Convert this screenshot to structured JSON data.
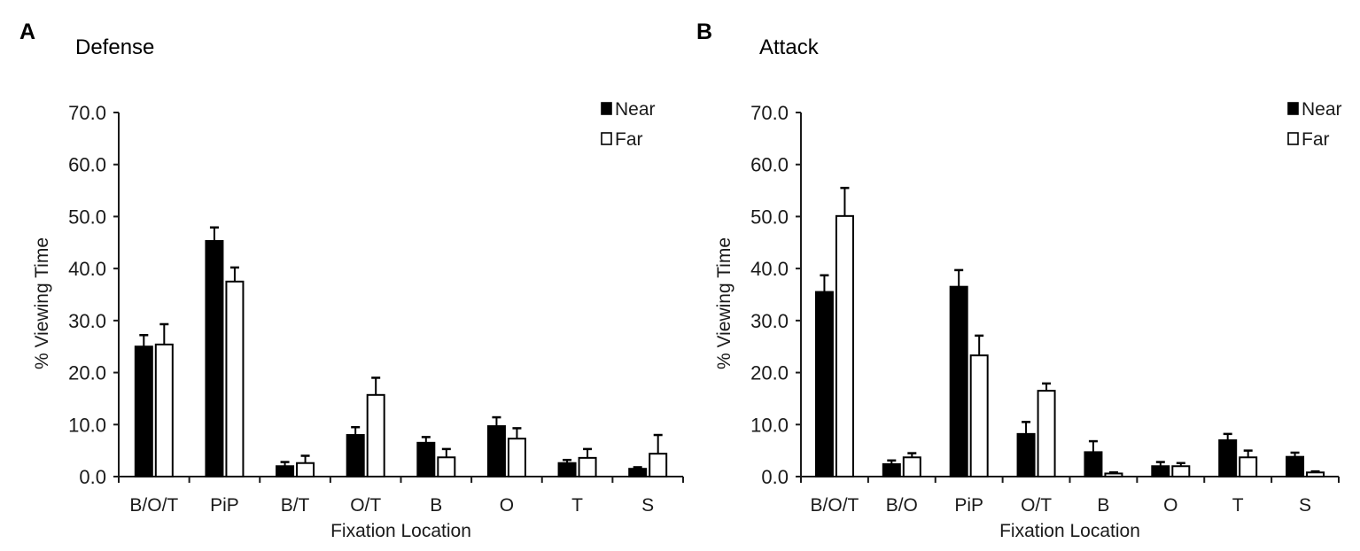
{
  "figure": {
    "panels": [
      {
        "letter": "A",
        "title": "Defense"
      },
      {
        "letter": "B",
        "title": "Attack"
      }
    ]
  },
  "colors": {
    "near_fill": "#000000",
    "far_fill": "#ffffff",
    "stroke": "#000000",
    "axis": "#1a1a1a"
  },
  "chart_data": [
    {
      "type": "bar",
      "title": "Defense",
      "panel": "A",
      "xlabel": "Fixation Location",
      "ylabel": "% Viewing Time",
      "ylim": [
        0,
        70
      ],
      "yticks": [
        "0.0",
        "10.0",
        "20.0",
        "30.0",
        "40.0",
        "50.0",
        "60.0",
        "70.0"
      ],
      "grid": false,
      "legend_position": "top-right",
      "categories": [
        "B/O/T",
        "PiP",
        "B/T",
        "O/T",
        "B",
        "O",
        "T",
        "S"
      ],
      "series": [
        {
          "name": "Near",
          "values": [
            25.0,
            45.3,
            2.0,
            8.0,
            6.5,
            9.7,
            2.6,
            1.5
          ],
          "errors": [
            2.2,
            2.6,
            0.8,
            1.5,
            1.1,
            1.7,
            0.6,
            0.3
          ]
        },
        {
          "name": "Far",
          "values": [
            25.4,
            37.5,
            2.6,
            15.7,
            3.7,
            7.3,
            3.6,
            4.4
          ],
          "errors": [
            3.9,
            2.7,
            1.4,
            3.3,
            1.6,
            2.0,
            1.7,
            3.6
          ]
        }
      ]
    },
    {
      "type": "bar",
      "title": "Attack",
      "panel": "B",
      "xlabel": "Fixation Location",
      "ylabel": "% Viewing Time",
      "ylim": [
        0,
        70
      ],
      "yticks": [
        "0.0",
        "10.0",
        "20.0",
        "30.0",
        "40.0",
        "50.0",
        "60.0",
        "70.0"
      ],
      "grid": false,
      "legend_position": "top-right",
      "categories": [
        "B/O/T",
        "B/O",
        "PiP",
        "O/T",
        "B",
        "O",
        "T",
        "S"
      ],
      "series": [
        {
          "name": "Near",
          "values": [
            35.5,
            2.4,
            36.5,
            8.2,
            4.7,
            2.0,
            7.0,
            3.8
          ],
          "errors": [
            3.2,
            0.7,
            3.2,
            2.3,
            2.1,
            0.8,
            1.2,
            0.8
          ]
        },
        {
          "name": "Far",
          "values": [
            50.1,
            3.7,
            23.3,
            16.5,
            0.6,
            2.0,
            3.7,
            0.8
          ],
          "errors": [
            5.4,
            0.8,
            3.8,
            1.4,
            0.2,
            0.6,
            1.3,
            0.2
          ]
        }
      ]
    }
  ]
}
